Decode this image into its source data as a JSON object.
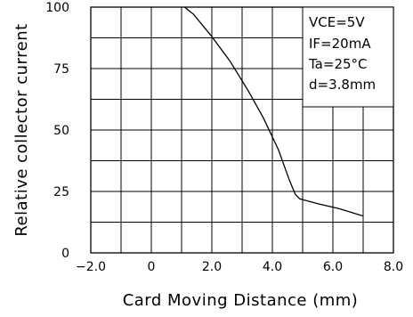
{
  "chart_data": {
    "type": "line",
    "xlabel": "Card Moving Distance (mm)",
    "ylabel": "Relative collector current",
    "xlim": [
      -2.0,
      8.0
    ],
    "ylim": [
      0,
      100
    ],
    "xticks": [
      "−2.0",
      "0",
      "2.0",
      "4.0",
      "6.0",
      "8.0"
    ],
    "yticks": [
      "0",
      "25",
      "50",
      "75",
      "100"
    ],
    "grid": true,
    "conditions": [
      "VCE=5V",
      "IF=20mA",
      "Ta=25°C",
      "d=3.8mm"
    ],
    "legend_position": "top-right",
    "series": [
      {
        "x": [
          1.1,
          1.4,
          2.0,
          2.6,
          3.2,
          3.7,
          4.2,
          4.55,
          4.75,
          4.9,
          5.5,
          6.2,
          7.0
        ],
        "y": [
          100,
          97,
          88,
          78,
          66,
          55,
          42,
          30,
          24,
          22,
          20,
          18,
          15
        ]
      }
    ]
  }
}
